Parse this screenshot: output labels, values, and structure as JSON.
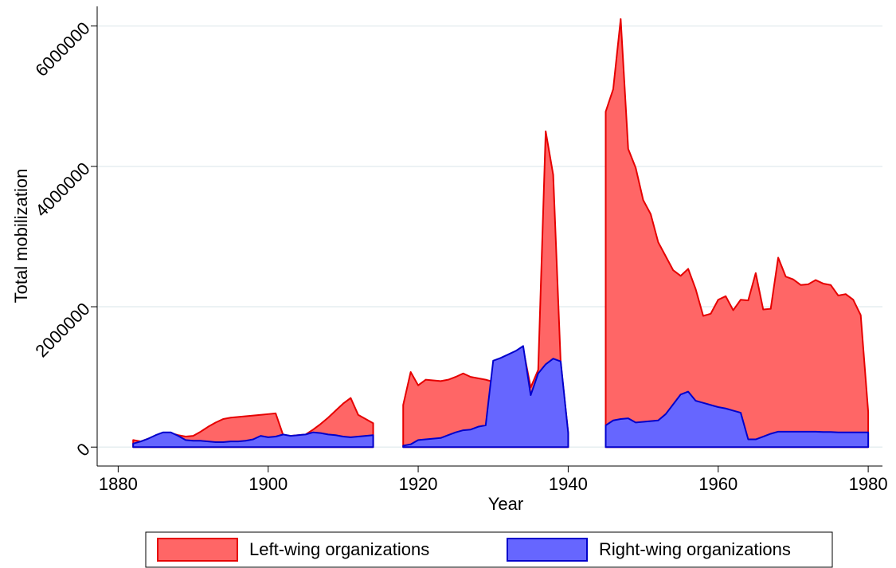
{
  "chart_data": {
    "type": "area",
    "x_label": "Year",
    "y_label": "Total mobilization",
    "x": [
      1882,
      1883,
      1884,
      1885,
      1886,
      1887,
      1888,
      1889,
      1890,
      1891,
      1892,
      1893,
      1894,
      1895,
      1896,
      1897,
      1898,
      1899,
      1900,
      1901,
      1902,
      1903,
      1904,
      1905,
      1906,
      1907,
      1908,
      1909,
      1910,
      1911,
      1912,
      1913,
      1914,
      1915,
      1916,
      1917,
      1918,
      1919,
      1920,
      1921,
      1922,
      1923,
      1924,
      1925,
      1926,
      1927,
      1928,
      1929,
      1930,
      1931,
      1932,
      1933,
      1934,
      1935,
      1936,
      1937,
      1938,
      1939,
      1940,
      1941,
      1942,
      1943,
      1944,
      1945,
      1946,
      1947,
      1948,
      1949,
      1950,
      1951,
      1952,
      1953,
      1954,
      1955,
      1956,
      1957,
      1958,
      1959,
      1960,
      1961,
      1962,
      1963,
      1964,
      1965,
      1966,
      1967,
      1968,
      1969,
      1970,
      1971,
      1972,
      1973,
      1974,
      1975,
      1976,
      1977,
      1978,
      1979,
      1980
    ],
    "series": [
      {
        "name": "Left-wing organizations",
        "color": "#ff6666",
        "line_color": "#e60000",
        "values": [
          100000,
          80000,
          120000,
          160000,
          200000,
          200000,
          170000,
          150000,
          160000,
          220000,
          290000,
          350000,
          400000,
          420000,
          430000,
          440000,
          450000,
          460000,
          470000,
          480000,
          170000,
          160000,
          170000,
          180000,
          250000,
          330000,
          420000,
          520000,
          620000,
          700000,
          460000,
          400000,
          340000,
          null,
          null,
          null,
          600000,
          1070000,
          880000,
          960000,
          950000,
          940000,
          960000,
          1000000,
          1050000,
          1000000,
          980000,
          960000,
          930000,
          1000000,
          1200000,
          1300000,
          1400000,
          850000,
          1100000,
          4500000,
          3880000,
          1200000,
          200000,
          null,
          null,
          null,
          null,
          4780000,
          5100000,
          6100000,
          4250000,
          3980000,
          3520000,
          3320000,
          2920000,
          2720000,
          2520000,
          2440000,
          2540000,
          2250000,
          1870000,
          1900000,
          2100000,
          2150000,
          1950000,
          2100000,
          2090000,
          2480000,
          1960000,
          1970000,
          2700000,
          2430000,
          2390000,
          2310000,
          2320000,
          2380000,
          2330000,
          2310000,
          2160000,
          2180000,
          2100000,
          1880000,
          500000
        ]
      },
      {
        "name": "Right-wing organizations",
        "color": "#6666ff",
        "line_color": "#0000cc",
        "values": [
          50000,
          80000,
          120000,
          170000,
          210000,
          210000,
          160000,
          100000,
          90000,
          90000,
          80000,
          70000,
          70000,
          80000,
          80000,
          90000,
          110000,
          160000,
          140000,
          150000,
          180000,
          160000,
          170000,
          180000,
          210000,
          200000,
          180000,
          170000,
          150000,
          140000,
          150000,
          160000,
          170000,
          null,
          null,
          null,
          20000,
          40000,
          100000,
          110000,
          120000,
          130000,
          170000,
          210000,
          240000,
          250000,
          290000,
          310000,
          1230000,
          1270000,
          1320000,
          1370000,
          1440000,
          740000,
          1050000,
          1180000,
          1260000,
          1220000,
          200000,
          null,
          null,
          null,
          null,
          310000,
          380000,
          400000,
          410000,
          350000,
          360000,
          370000,
          380000,
          470000,
          610000,
          750000,
          790000,
          660000,
          630000,
          600000,
          570000,
          550000,
          520000,
          490000,
          110000,
          110000,
          150000,
          190000,
          220000,
          220000,
          220000,
          220000,
          220000,
          220000,
          215000,
          215000,
          210000,
          210000,
          210000,
          210000,
          210000
        ]
      }
    ],
    "xlim": [
      1877.2,
      1981.9
    ],
    "xticks": [
      1880,
      1900,
      1920,
      1940,
      1960,
      1980
    ],
    "ylim": [
      -270000,
      6280000
    ],
    "yticks": [
      0,
      2000000,
      4000000,
      6000000
    ],
    "grid": true,
    "legend": "bottom"
  }
}
